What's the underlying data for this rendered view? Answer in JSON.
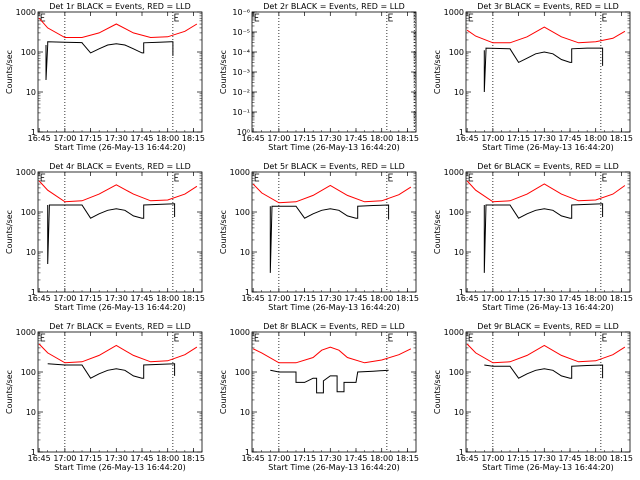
{
  "colors": {
    "events": "#000000",
    "lld": "#ff0000",
    "background": "#ffffff"
  },
  "time_ticks": [
    "16:45",
    "17:00",
    "17:15",
    "17:30",
    "17:45",
    "18:00",
    "18:15"
  ],
  "chart_data": [
    {
      "type": "line",
      "title": "Det 1r BLACK = Events, RED = LLD",
      "xlabel": "Start Time (26-May-13 16:44:20)",
      "ylabel": "Counts/sec",
      "y_scale": "log",
      "ylim": [
        1,
        1000
      ],
      "y_tick_labels": [
        "1",
        "10",
        "100",
        "1000"
      ],
      "x_tick_labels": [
        "16:45",
        "17:00",
        "17:15",
        "17:30",
        "17:45",
        "18:00",
        "18:15"
      ],
      "vlines": [
        "17:00",
        "18:03"
      ],
      "markers": [
        "16:45",
        "18:03"
      ],
      "grid": false,
      "series": [
        {
          "name": "Events",
          "color": "#000000",
          "x": [
            "16:49",
            "16:49",
            "16:50",
            "16:50",
            "17:00",
            "17:10",
            "17:10",
            "17:15",
            "17:20",
            "17:25",
            "17:30",
            "17:35",
            "17:40",
            "17:45",
            "17:46",
            "17:46",
            "17:55",
            "18:02",
            "18:03",
            "18:03"
          ],
          "y": [
            150,
            20,
            150,
            180,
            175,
            172,
            170,
            95,
            120,
            150,
            160,
            150,
            120,
            95,
            95,
            170,
            175,
            180,
            180,
            80
          ]
        },
        {
          "name": "LLD",
          "color": "#ff0000",
          "x": [
            "16:45",
            "16:50",
            "17:00",
            "17:10",
            "17:20",
            "17:30",
            "17:40",
            "17:50",
            "18:00",
            "18:10",
            "18:17"
          ],
          "y": [
            700,
            400,
            230,
            230,
            300,
            500,
            300,
            230,
            240,
            330,
            500
          ]
        }
      ]
    },
    {
      "type": "line",
      "title": "Det 2r BLACK = Events, RED = LLD",
      "xlabel": "Start Time (26-May-13 16:44:20)",
      "ylabel": "Counts/sec",
      "y_scale": "log",
      "ylim": [
        1,
        1e-06
      ],
      "y_tick_labels": [
        "10⁰",
        "10⁻¹",
        "10⁻²",
        "10⁻³",
        "10⁻⁴",
        "10⁻⁵",
        "10⁻⁶"
      ],
      "x_tick_labels": [
        "16:45",
        "17:00",
        "17:15",
        "17:30",
        "17:45",
        "18:00",
        "18:15"
      ],
      "vlines": [
        "17:00",
        "18:03",
        "18:19"
      ],
      "markers": [
        "16:45",
        "18:03"
      ],
      "grid": false,
      "series": []
    },
    {
      "type": "line",
      "title": "Det 3r BLACK = Events, RED = LLD",
      "xlabel": "Start Time (26-May-13 16:44:20)",
      "ylabel": "Counts/sec",
      "y_scale": "log",
      "ylim": [
        1,
        1000
      ],
      "y_tick_labels": [
        "1",
        "10",
        "100",
        "1000"
      ],
      "x_tick_labels": [
        "16:45",
        "17:00",
        "17:15",
        "17:30",
        "17:45",
        "18:00",
        "18:15"
      ],
      "vlines": [
        "17:00",
        "18:03"
      ],
      "markers": [
        "16:45",
        "18:03"
      ],
      "grid": false,
      "series": [
        {
          "name": "Events",
          "color": "#000000",
          "x": [
            "16:55",
            "16:55",
            "16:56",
            "16:56",
            "17:10",
            "17:10",
            "17:15",
            "17:20",
            "17:25",
            "17:30",
            "17:35",
            "17:40",
            "17:45",
            "17:46",
            "17:46",
            "17:55",
            "18:04",
            "18:04"
          ],
          "y": [
            110,
            10,
            110,
            125,
            120,
            120,
            55,
            70,
            90,
            100,
            90,
            65,
            55,
            55,
            120,
            125,
            125,
            45
          ]
        },
        {
          "name": "LLD",
          "color": "#ff0000",
          "x": [
            "16:45",
            "16:50",
            "17:00",
            "17:10",
            "17:20",
            "17:30",
            "17:40",
            "17:50",
            "18:00",
            "18:10",
            "18:17"
          ],
          "y": [
            350,
            250,
            170,
            170,
            240,
            420,
            240,
            170,
            180,
            220,
            330
          ]
        }
      ]
    },
    {
      "type": "line",
      "title": "Det 4r BLACK = Events, RED = LLD",
      "xlabel": "Start Time (26-May-13 16:44:20)",
      "ylabel": "Counts/sec",
      "y_scale": "log",
      "ylim": [
        1,
        1000
      ],
      "y_tick_labels": [
        "1",
        "10",
        "100",
        "1000"
      ],
      "x_tick_labels": [
        "16:45",
        "17:00",
        "17:15",
        "17:30",
        "17:45",
        "18:00",
        "18:15"
      ],
      "vlines": [
        "17:00",
        "18:03"
      ],
      "markers": [
        "16:45",
        "18:03"
      ],
      "grid": false,
      "series": [
        {
          "name": "Events",
          "color": "#000000",
          "x": [
            "16:50",
            "16:50",
            "16:51",
            "16:51",
            "17:10",
            "17:10",
            "17:15",
            "17:20",
            "17:25",
            "17:30",
            "17:35",
            "17:40",
            "17:45",
            "17:46",
            "17:46",
            "17:55",
            "18:04",
            "18:04"
          ],
          "y": [
            150,
            5,
            150,
            150,
            150,
            150,
            70,
            90,
            110,
            120,
            110,
            80,
            70,
            70,
            150,
            155,
            160,
            75
          ]
        },
        {
          "name": "LLD",
          "color": "#ff0000",
          "x": [
            "16:45",
            "16:50",
            "17:00",
            "17:10",
            "17:20",
            "17:30",
            "17:40",
            "17:50",
            "18:00",
            "18:10",
            "18:17"
          ],
          "y": [
            600,
            350,
            180,
            190,
            280,
            480,
            280,
            190,
            200,
            280,
            440
          ]
        }
      ]
    },
    {
      "type": "line",
      "title": "Det 5r BLACK = Events, RED = LLD",
      "xlabel": "Start Time (26-May-13 16:44:20)",
      "ylabel": "Counts/sec",
      "y_scale": "log",
      "ylim": [
        1,
        1000
      ],
      "y_tick_labels": [
        "1",
        "10",
        "100",
        "1000"
      ],
      "x_tick_labels": [
        "16:45",
        "17:00",
        "17:15",
        "17:30",
        "17:45",
        "18:00",
        "18:15"
      ],
      "vlines": [
        "17:00",
        "18:03"
      ],
      "markers": [
        "16:45",
        "18:03"
      ],
      "grid": false,
      "series": [
        {
          "name": "Events",
          "color": "#000000",
          "x": [
            "16:55",
            "16:55",
            "16:56",
            "16:56",
            "17:10",
            "17:10",
            "17:15",
            "17:20",
            "17:25",
            "17:30",
            "17:35",
            "17:40",
            "17:45",
            "17:46",
            "17:46",
            "17:55",
            "18:04",
            "18:04"
          ],
          "y": [
            140,
            3,
            140,
            140,
            140,
            140,
            70,
            90,
            110,
            120,
            110,
            80,
            70,
            70,
            140,
            145,
            150,
            65
          ]
        },
        {
          "name": "LLD",
          "color": "#ff0000",
          "x": [
            "16:45",
            "16:50",
            "17:00",
            "17:10",
            "17:20",
            "17:30",
            "17:40",
            "17:50",
            "18:00",
            "18:10",
            "18:17"
          ],
          "y": [
            500,
            300,
            170,
            180,
            260,
            460,
            260,
            180,
            190,
            270,
            420
          ]
        }
      ]
    },
    {
      "type": "line",
      "title": "Det 6r BLACK = Events, RED = LLD",
      "xlabel": "Start Time (26-May-13 16:44:20)",
      "ylabel": "Counts/sec",
      "y_scale": "log",
      "ylim": [
        1,
        1000
      ],
      "y_tick_labels": [
        "1",
        "10",
        "100",
        "1000"
      ],
      "x_tick_labels": [
        "16:45",
        "17:00",
        "17:15",
        "17:30",
        "17:45",
        "18:00",
        "18:15"
      ],
      "vlines": [
        "17:00",
        "18:03"
      ],
      "markers": [
        "16:45",
        "18:03"
      ],
      "grid": false,
      "series": [
        {
          "name": "Events",
          "color": "#000000",
          "x": [
            "16:55",
            "16:55",
            "16:56",
            "16:56",
            "17:10",
            "17:10",
            "17:15",
            "17:20",
            "17:25",
            "17:30",
            "17:35",
            "17:40",
            "17:45",
            "17:46",
            "17:46",
            "17:55",
            "18:04",
            "18:04"
          ],
          "y": [
            150,
            3,
            150,
            150,
            150,
            150,
            70,
            90,
            110,
            120,
            110,
            80,
            70,
            70,
            150,
            155,
            160,
            75
          ]
        },
        {
          "name": "LLD",
          "color": "#ff0000",
          "x": [
            "16:45",
            "16:50",
            "17:00",
            "17:10",
            "17:20",
            "17:30",
            "17:40",
            "17:50",
            "18:00",
            "18:10",
            "18:17"
          ],
          "y": [
            600,
            350,
            180,
            190,
            280,
            500,
            280,
            190,
            200,
            280,
            460
          ]
        }
      ]
    },
    {
      "type": "line",
      "title": "Det 7r BLACK = Events, RED = LLD",
      "xlabel": "Start Time (26-May-13 16:44:20)",
      "ylabel": "Counts/sec",
      "y_scale": "log",
      "ylim": [
        1,
        1000
      ],
      "y_tick_labels": [
        "1",
        "10",
        "100",
        "1000"
      ],
      "x_tick_labels": [
        "16:45",
        "17:00",
        "17:15",
        "17:30",
        "17:45",
        "18:00",
        "18:15"
      ],
      "vlines": [
        "17:00",
        "18:03"
      ],
      "markers": [
        "16:45",
        "18:03"
      ],
      "grid": false,
      "series": [
        {
          "name": "Events",
          "color": "#000000",
          "x": [
            "16:50",
            "17:00",
            "17:10",
            "17:10",
            "17:15",
            "17:20",
            "17:25",
            "17:30",
            "17:35",
            "17:40",
            "17:45",
            "17:46",
            "17:46",
            "17:55",
            "18:04",
            "18:04"
          ],
          "y": [
            160,
            150,
            150,
            150,
            70,
            90,
            110,
            120,
            110,
            80,
            70,
            70,
            150,
            155,
            160,
            80
          ]
        },
        {
          "name": "LLD",
          "color": "#ff0000",
          "x": [
            "16:45",
            "16:50",
            "17:00",
            "17:10",
            "17:20",
            "17:30",
            "17:40",
            "17:50",
            "18:00",
            "18:10",
            "18:17"
          ],
          "y": [
            500,
            300,
            170,
            180,
            260,
            460,
            260,
            180,
            190,
            270,
            420
          ]
        }
      ]
    },
    {
      "type": "line",
      "title": "Det 8r BLACK = Events, RED = LLD",
      "xlabel": "Start Time (26-May-13 16:44:20)",
      "ylabel": "Counts/sec",
      "y_scale": "log",
      "ylim": [
        1,
        1000
      ],
      "y_tick_labels": [
        "1",
        "10",
        "100",
        "1000"
      ],
      "x_tick_labels": [
        "16:45",
        "17:00",
        "17:15",
        "17:30",
        "17:45",
        "18:00",
        "18:15"
      ],
      "vlines": [
        "17:00",
        "18:03"
      ],
      "markers": [
        "16:45",
        "18:03"
      ],
      "grid": false,
      "series": [
        {
          "name": "Events",
          "color": "#000000",
          "x": [
            "16:55",
            "17:00",
            "17:10",
            "17:10",
            "17:15",
            "17:20",
            "17:22",
            "17:22",
            "17:26",
            "17:26",
            "17:30",
            "17:34",
            "17:34",
            "17:38",
            "17:38",
            "17:45",
            "17:46",
            "17:55",
            "18:04"
          ],
          "y": [
            110,
            100,
            100,
            55,
            55,
            70,
            70,
            30,
            30,
            60,
            80,
            80,
            32,
            32,
            55,
            55,
            100,
            105,
            110
          ]
        },
        {
          "name": "LLD",
          "color": "#ff0000",
          "x": [
            "16:45",
            "16:50",
            "17:00",
            "17:10",
            "17:20",
            "17:25",
            "17:30",
            "17:35",
            "17:40",
            "17:50",
            "18:00",
            "18:10",
            "18:17"
          ],
          "y": [
            380,
            300,
            170,
            170,
            230,
            350,
            420,
            350,
            230,
            170,
            200,
            270,
            380
          ]
        }
      ]
    },
    {
      "type": "line",
      "title": "Det 9r BLACK = Events, RED = LLD",
      "xlabel": "Start Time (26-May-13 16:44:20)",
      "ylabel": "Counts/sec",
      "y_scale": "log",
      "ylim": [
        1,
        1000
      ],
      "y_tick_labels": [
        "1",
        "10",
        "100",
        "1000"
      ],
      "x_tick_labels": [
        "16:45",
        "17:00",
        "17:15",
        "17:30",
        "17:45",
        "18:00",
        "18:15"
      ],
      "vlines": [
        "17:00",
        "18:03"
      ],
      "markers": [
        "16:45",
        "18:03"
      ],
      "grid": false,
      "series": [
        {
          "name": "Events",
          "color": "#000000",
          "x": [
            "16:55",
            "17:00",
            "17:10",
            "17:10",
            "17:15",
            "17:20",
            "17:25",
            "17:30",
            "17:35",
            "17:40",
            "17:45",
            "17:46",
            "17:46",
            "17:55",
            "18:04",
            "18:04"
          ],
          "y": [
            150,
            140,
            140,
            140,
            70,
            90,
            110,
            120,
            110,
            80,
            70,
            70,
            140,
            145,
            150,
            70
          ]
        },
        {
          "name": "LLD",
          "color": "#ff0000",
          "x": [
            "16:45",
            "16:50",
            "17:00",
            "17:10",
            "17:20",
            "17:30",
            "17:40",
            "17:50",
            "18:00",
            "18:10",
            "18:17"
          ],
          "y": [
            500,
            300,
            170,
            180,
            260,
            460,
            260,
            180,
            190,
            270,
            420
          ]
        }
      ]
    }
  ]
}
